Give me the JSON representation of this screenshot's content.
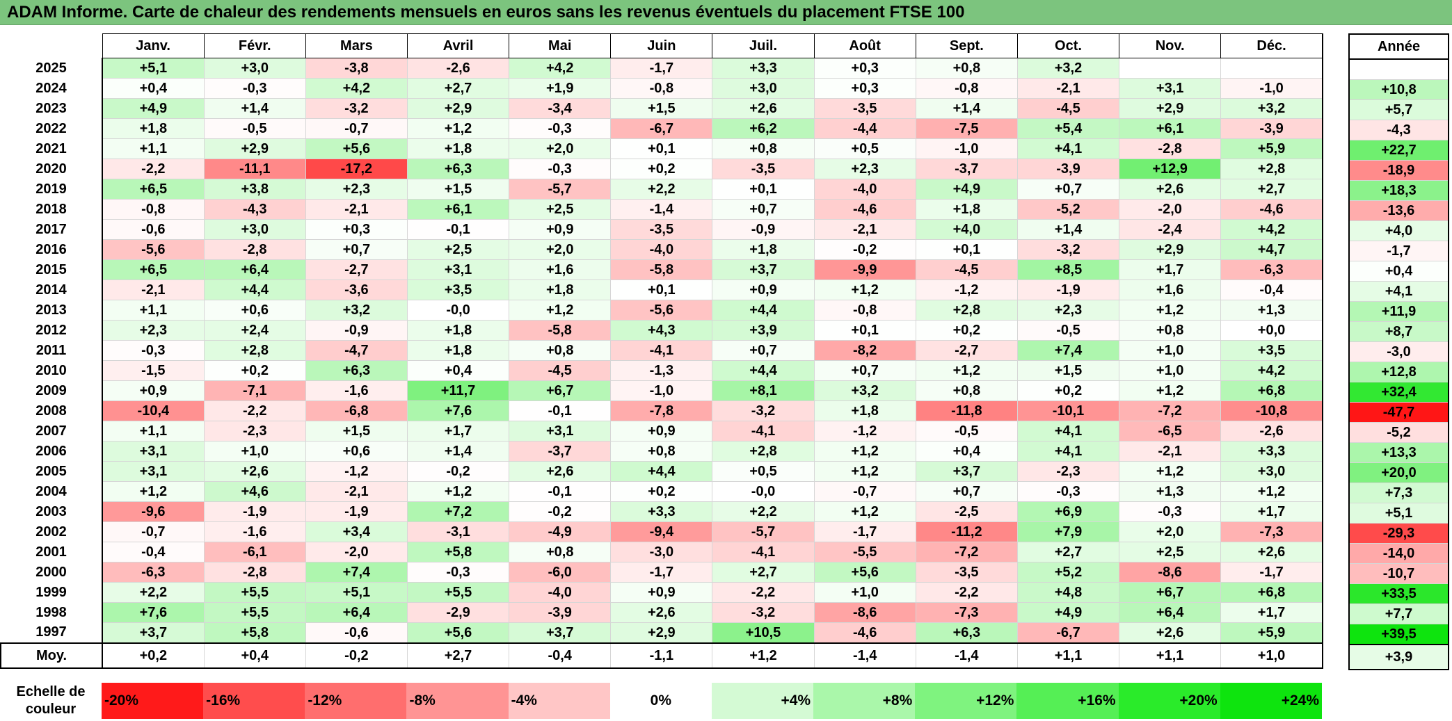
{
  "title": "ADAM Informe. Carte de chaleur des rendements mensuels en euros sans les revenus éventuels du placement FTSE 100",
  "months": [
    "Janv.",
    "Févr.",
    "Mars",
    "Avril",
    "Mai",
    "Juin",
    "Juil.",
    "Août",
    "Sept.",
    "Oct.",
    "Nov.",
    "Déc."
  ],
  "annual_header": "Année",
  "rows": [
    {
      "year": "2025",
      "m": [
        "+5,1",
        "+3,0",
        "-3,8",
        "-2,6",
        "+4,2",
        "-1,7",
        "+3,3",
        "+0,3",
        "+0,8",
        "+3,2",
        "",
        ""
      ],
      "a": ""
    },
    {
      "year": "2024",
      "m": [
        "+0,4",
        "-0,3",
        "+4,2",
        "+2,7",
        "+1,9",
        "-0,8",
        "+3,0",
        "+0,3",
        "-0,8",
        "-2,1",
        "+3,1",
        "-1,0"
      ],
      "a": "+10,8"
    },
    {
      "year": "2023",
      "m": [
        "+4,9",
        "+1,4",
        "-3,2",
        "+2,9",
        "-3,4",
        "+1,5",
        "+2,6",
        "-3,5",
        "+1,4",
        "-4,5",
        "+2,9",
        "+3,2"
      ],
      "a": "+5,7"
    },
    {
      "year": "2022",
      "m": [
        "+1,8",
        "-0,5",
        "-0,7",
        "+1,2",
        "-0,3",
        "-6,7",
        "+6,2",
        "-4,4",
        "-7,5",
        "+5,4",
        "+6,1",
        "-3,9"
      ],
      "a": "-4,3"
    },
    {
      "year": "2021",
      "m": [
        "+1,1",
        "+2,9",
        "+5,6",
        "+1,8",
        "+2,0",
        "+0,1",
        "+0,8",
        "+0,5",
        "-1,0",
        "+4,1",
        "-2,8",
        "+5,9"
      ],
      "a": "+22,7"
    },
    {
      "year": "2020",
      "m": [
        "-2,2",
        "-11,1",
        "-17,2",
        "+6,3",
        "-0,3",
        "+0,2",
        "-3,5",
        "+2,3",
        "-3,7",
        "-3,9",
        "+12,9",
        "+2,8"
      ],
      "a": "-18,9"
    },
    {
      "year": "2019",
      "m": [
        "+6,5",
        "+3,8",
        "+2,3",
        "+1,5",
        "-5,7",
        "+2,2",
        "+0,1",
        "-4,0",
        "+4,9",
        "+0,7",
        "+2,6",
        "+2,7"
      ],
      "a": "+18,3"
    },
    {
      "year": "2018",
      "m": [
        "-0,8",
        "-4,3",
        "-2,1",
        "+6,1",
        "+2,5",
        "-1,4",
        "+0,7",
        "-4,6",
        "+1,8",
        "-5,2",
        "-2,0",
        "-4,6"
      ],
      "a": "-13,6"
    },
    {
      "year": "2017",
      "m": [
        "-0,6",
        "+3,0",
        "+0,3",
        "-0,1",
        "+0,9",
        "-3,5",
        "-0,9",
        "-2,1",
        "+4,0",
        "+1,4",
        "-2,4",
        "+4,2"
      ],
      "a": "+4,0"
    },
    {
      "year": "2016",
      "m": [
        "-5,6",
        "-2,8",
        "+0,7",
        "+2,5",
        "+2,0",
        "-4,0",
        "+1,8",
        "-0,2",
        "+0,1",
        "-3,2",
        "+2,9",
        "+4,7"
      ],
      "a": "-1,7"
    },
    {
      "year": "2015",
      "m": [
        "+6,5",
        "+6,4",
        "-2,7",
        "+3,1",
        "+1,6",
        "-5,8",
        "+3,7",
        "-9,9",
        "-4,5",
        "+8,5",
        "+1,7",
        "-6,3"
      ],
      "a": "+0,4"
    },
    {
      "year": "2014",
      "m": [
        "-2,1",
        "+4,4",
        "-3,6",
        "+3,5",
        "+1,8",
        "+0,1",
        "+0,9",
        "+1,2",
        "-1,2",
        "-1,9",
        "+1,6",
        "-0,4"
      ],
      "a": "+4,1"
    },
    {
      "year": "2013",
      "m": [
        "+1,1",
        "+0,6",
        "+3,2",
        "-0,0",
        "+1,2",
        "-5,6",
        "+4,4",
        "-0,8",
        "+2,8",
        "+2,3",
        "+1,2",
        "+1,3"
      ],
      "a": "+11,9"
    },
    {
      "year": "2012",
      "m": [
        "+2,3",
        "+2,4",
        "-0,9",
        "+1,8",
        "-5,8",
        "+4,3",
        "+3,9",
        "+0,1",
        "+0,2",
        "-0,5",
        "+0,8",
        "+0,0"
      ],
      "a": "+8,7"
    },
    {
      "year": "2011",
      "m": [
        "-0,3",
        "+2,8",
        "-4,7",
        "+1,8",
        "+0,8",
        "-4,1",
        "+0,7",
        "-8,2",
        "-2,7",
        "+7,4",
        "+1,0",
        "+3,5"
      ],
      "a": "-3,0"
    },
    {
      "year": "2010",
      "m": [
        "-1,5",
        "+0,2",
        "+6,3",
        "+0,4",
        "-4,5",
        "-1,3",
        "+4,4",
        "+0,7",
        "+1,2",
        "+1,5",
        "+1,0",
        "+4,2"
      ],
      "a": "+12,8"
    },
    {
      "year": "2009",
      "m": [
        "+0,9",
        "-7,1",
        "-1,6",
        "+11,7",
        "+6,7",
        "-1,0",
        "+8,1",
        "+3,2",
        "+0,8",
        "+0,2",
        "+1,2",
        "+6,8"
      ],
      "a": "+32,4"
    },
    {
      "year": "2008",
      "m": [
        "-10,4",
        "-2,2",
        "-6,8",
        "+7,6",
        "-0,1",
        "-7,8",
        "-3,2",
        "+1,8",
        "-11,8",
        "-10,1",
        "-7,2",
        "-10,8"
      ],
      "a": "-47,7"
    },
    {
      "year": "2007",
      "m": [
        "+1,1",
        "-2,3",
        "+1,5",
        "+1,7",
        "+3,1",
        "+0,9",
        "-4,1",
        "-1,2",
        "-0,5",
        "+4,1",
        "-6,5",
        "-2,6"
      ],
      "a": "-5,2"
    },
    {
      "year": "2006",
      "m": [
        "+3,1",
        "+1,0",
        "+0,6",
        "+1,4",
        "-3,7",
        "+0,8",
        "+2,8",
        "+1,2",
        "+0,4",
        "+4,1",
        "-2,1",
        "+3,3"
      ],
      "a": "+13,3"
    },
    {
      "year": "2005",
      "m": [
        "+3,1",
        "+2,6",
        "-1,2",
        "-0,2",
        "+2,6",
        "+4,4",
        "+0,5",
        "+1,2",
        "+3,7",
        "-2,3",
        "+1,2",
        "+3,0"
      ],
      "a": "+20,0"
    },
    {
      "year": "2004",
      "m": [
        "+1,2",
        "+4,6",
        "-2,1",
        "+1,2",
        "-0,1",
        "+0,2",
        "-0,0",
        "-0,7",
        "+0,7",
        "-0,3",
        "+1,3",
        "+1,2"
      ],
      "a": "+7,3"
    },
    {
      "year": "2003",
      "m": [
        "-9,6",
        "-1,9",
        "-1,9",
        "+7,2",
        "-0,2",
        "+3,3",
        "+2,2",
        "+1,2",
        "-2,5",
        "+6,9",
        "-0,3",
        "+1,7"
      ],
      "a": "+5,1"
    },
    {
      "year": "2002",
      "m": [
        "-0,7",
        "-1,6",
        "+3,4",
        "-3,1",
        "-4,9",
        "-9,4",
        "-5,7",
        "-1,7",
        "-11,2",
        "+7,9",
        "+2,0",
        "-7,3"
      ],
      "a": "-29,3"
    },
    {
      "year": "2001",
      "m": [
        "-0,4",
        "-6,1",
        "-2,0",
        "+5,8",
        "+0,8",
        "-3,0",
        "-4,1",
        "-5,5",
        "-7,2",
        "+2,7",
        "+2,5",
        "+2,6"
      ],
      "a": "-14,0"
    },
    {
      "year": "2000",
      "m": [
        "-6,3",
        "-2,8",
        "+7,4",
        "-0,3",
        "-6,0",
        "-1,7",
        "+2,7",
        "+5,6",
        "-3,5",
        "+5,2",
        "-8,6",
        "-1,7"
      ],
      "a": "-10,7"
    },
    {
      "year": "1999",
      "m": [
        "+2,2",
        "+5,5",
        "+5,1",
        "+5,5",
        "-4,0",
        "+0,9",
        "-2,2",
        "+1,0",
        "-2,2",
        "+4,8",
        "+6,7",
        "+6,8"
      ],
      "a": "+33,5"
    },
    {
      "year": "1998",
      "m": [
        "+7,6",
        "+5,5",
        "+6,4",
        "-2,9",
        "-3,9",
        "+2,6",
        "-3,2",
        "-8,6",
        "-7,3",
        "+4,9",
        "+6,4",
        "+1,7"
      ],
      "a": "+7,7"
    },
    {
      "year": "1997",
      "m": [
        "+3,7",
        "+5,8",
        "-0,6",
        "+5,6",
        "+3,7",
        "+2,9",
        "+10,5",
        "-4,6",
        "+6,3",
        "-6,7",
        "+2,6",
        "+5,9"
      ],
      "a": "+39,5"
    }
  ],
  "average": {
    "label": "Moy.",
    "m": [
      "+0,2",
      "+0,4",
      "-0,2",
      "+2,7",
      "-0,4",
      "-1,1",
      "+1,2",
      "-1,4",
      "-1,4",
      "+1,1",
      "+1,1",
      "+1,0"
    ],
    "a": "+3,9"
  },
  "scale": {
    "label": "Echelle de couleur",
    "steps": [
      {
        "text": "-20%",
        "color": "#ff1a1a",
        "align": "neg"
      },
      {
        "text": "-16%",
        "color": "#ff4d4d",
        "align": "neg"
      },
      {
        "text": "-12%",
        "color": "#ff6e6e",
        "align": "neg"
      },
      {
        "text": "-8%",
        "color": "#ff9494",
        "align": "neg"
      },
      {
        "text": "-4%",
        "color": "#ffc6c6",
        "align": "neg"
      },
      {
        "text": "0%",
        "color": "#ffffff",
        "align": "mid"
      },
      {
        "text": "+4%",
        "color": "#d4fad4",
        "align": "pos"
      },
      {
        "text": "+8%",
        "color": "#aaf7aa",
        "align": "pos"
      },
      {
        "text": "+12%",
        "color": "#7ff37f",
        "align": "pos"
      },
      {
        "text": "+16%",
        "color": "#55ef55",
        "align": "pos"
      },
      {
        "text": "+20%",
        "color": "#2aeb2a",
        "align": "pos"
      },
      {
        "text": "+24%",
        "color": "#0ee40e",
        "align": "pos"
      }
    ]
  }
}
